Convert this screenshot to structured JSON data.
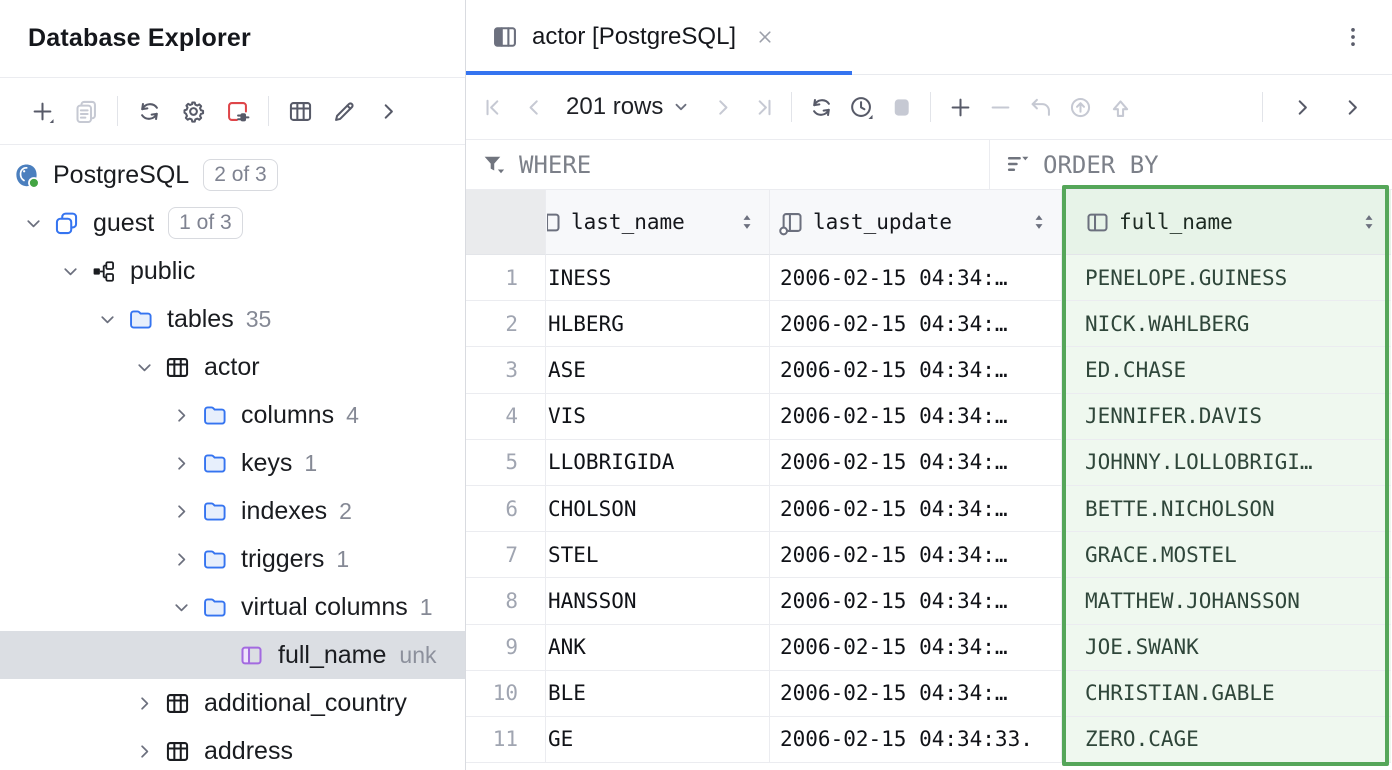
{
  "left_panel": {
    "title": "Database Explorer",
    "toolbar": [
      {
        "icon": "add-icon",
        "name": "add-data-source-button",
        "enabled": true,
        "dropdown": true
      },
      {
        "icon": "duplicate-icon",
        "name": "duplicate-button",
        "enabled": false
      },
      {
        "type": "separator"
      },
      {
        "icon": "refresh-icon",
        "name": "refresh-button",
        "enabled": true
      },
      {
        "icon": "settings-icon",
        "name": "settings-button",
        "enabled": true
      },
      {
        "icon": "disconnect-icon",
        "name": "disconnect-button",
        "enabled": true
      },
      {
        "type": "separator"
      },
      {
        "icon": "table-view-icon",
        "name": "table-view-button",
        "enabled": true
      },
      {
        "icon": "edit-icon",
        "name": "edit-source-button",
        "enabled": true
      },
      {
        "icon": "chevron-right-icon",
        "name": "more-actions-button",
        "enabled": true
      }
    ],
    "tree": [
      {
        "label": "PostgreSQL",
        "icon": "postgresql-icon",
        "level": 0,
        "badge": "2 of 3"
      },
      {
        "label": "guest",
        "icon": "database-icon",
        "level": 1,
        "expanded": true,
        "badge": "1 of 3"
      },
      {
        "label": "public",
        "icon": "schema-icon",
        "level": 2,
        "expanded": true
      },
      {
        "label": "tables",
        "icon": "folder-icon",
        "level": 3,
        "expanded": true,
        "count": "35"
      },
      {
        "label": "actor",
        "icon": "table-icon",
        "level": 4,
        "expanded": true
      },
      {
        "label": "columns",
        "icon": "folder-icon",
        "level": 5,
        "expanded": false,
        "count": "4"
      },
      {
        "label": "keys",
        "icon": "folder-icon",
        "level": 5,
        "expanded": false,
        "count": "1"
      },
      {
        "label": "indexes",
        "icon": "folder-icon",
        "level": 5,
        "expanded": false,
        "count": "2"
      },
      {
        "label": "triggers",
        "icon": "folder-icon",
        "level": 5,
        "expanded": false,
        "count": "1"
      },
      {
        "label": "virtual columns",
        "icon": "folder-icon",
        "level": 5,
        "expanded": true,
        "count": "1"
      },
      {
        "label": "full_name",
        "icon": "virtual-column-icon",
        "level": 6,
        "selected": true,
        "suffix": "unk"
      },
      {
        "label": "additional_country",
        "icon": "table-icon",
        "level": 4,
        "expanded": false
      },
      {
        "label": "address",
        "icon": "table-icon",
        "level": 4,
        "expanded": false
      }
    ]
  },
  "editor": {
    "tab": {
      "icon": "tab-table-icon",
      "title": "actor [PostgreSQL]"
    }
  },
  "grid_toolbar": {
    "left": [
      {
        "icon": "first-page-icon",
        "name": "first-page-button",
        "enabled": false
      },
      {
        "icon": "previous-page-icon",
        "name": "previous-page-button",
        "enabled": false
      },
      {
        "type": "dropdown",
        "name": "page-size-dropdown",
        "label": "201 rows"
      },
      {
        "icon": "next-page-icon",
        "name": "next-page-button",
        "enabled": false
      },
      {
        "icon": "last-page-icon",
        "name": "last-page-button",
        "enabled": false
      },
      {
        "type": "separator"
      },
      {
        "icon": "reload-icon",
        "name": "reload-data-button",
        "enabled": true
      },
      {
        "icon": "clock-icon",
        "name": "refresh-interval-button",
        "enabled": true,
        "dropdown": true
      },
      {
        "icon": "stop-icon",
        "name": "stop-button",
        "enabled": false
      },
      {
        "type": "separator"
      },
      {
        "icon": "plus-icon",
        "name": "add-row-button",
        "enabled": true
      },
      {
        "icon": "minus-icon",
        "name": "delete-row-button",
        "enabled": false
      },
      {
        "icon": "undo-icon",
        "name": "revert-changes-button",
        "enabled": false
      },
      {
        "icon": "submit-icon",
        "name": "submit-button",
        "enabled": false
      },
      {
        "icon": "upload-icon",
        "name": "commit-button",
        "enabled": false
      }
    ],
    "right": [
      {
        "type": "separator"
      },
      {
        "icon": "chevron-right-icon",
        "name": "show-toolbar-chevron-1",
        "enabled": true
      },
      {
        "icon": "chevron-right-icon",
        "name": "show-toolbar-chevron-2",
        "enabled": true
      }
    ]
  },
  "filter_bar": {
    "where_label": "WHERE",
    "order_by_label": "ORDER BY"
  },
  "table": {
    "columns": [
      {
        "label": "last_name",
        "icon": "column-icon",
        "icon_clipped": true,
        "sortable": true,
        "highlighted": false
      },
      {
        "label": "last_update",
        "icon": "column-with-default-icon",
        "icon_clipped": false,
        "sortable": true,
        "highlighted": false
      },
      {
        "label": "full_name",
        "icon": "column-icon",
        "icon_clipped": false,
        "sortable": true,
        "highlighted": true
      }
    ],
    "rows": [
      {
        "num": "1",
        "last_name": "INESS",
        "last_update": "2006-02-15 04:34:…",
        "full_name": "PENELOPE.GUINESS"
      },
      {
        "num": "2",
        "last_name": "HLBERG",
        "last_update": "2006-02-15 04:34:…",
        "full_name": "NICK.WAHLBERG"
      },
      {
        "num": "3",
        "last_name": "ASE",
        "last_update": "2006-02-15 04:34:…",
        "full_name": "ED.CHASE"
      },
      {
        "num": "4",
        "last_name": "VIS",
        "last_update": "2006-02-15 04:34:…",
        "full_name": "JENNIFER.DAVIS"
      },
      {
        "num": "5",
        "last_name": "LLOBRIGIDA",
        "last_update": "2006-02-15 04:34:…",
        "full_name": "JOHNNY.LOLLOBRIGI…"
      },
      {
        "num": "6",
        "last_name": "CHOLSON",
        "last_update": "2006-02-15 04:34:…",
        "full_name": "BETTE.NICHOLSON"
      },
      {
        "num": "7",
        "last_name": "STEL",
        "last_update": "2006-02-15 04:34:…",
        "full_name": "GRACE.MOSTEL"
      },
      {
        "num": "8",
        "last_name": "HANSSON",
        "last_update": "2006-02-15 04:34:…",
        "full_name": "MATTHEW.JOHANSSON"
      },
      {
        "num": "9",
        "last_name": "ANK",
        "last_update": "2006-02-15 04:34:…",
        "full_name": "JOE.SWANK"
      },
      {
        "num": "10",
        "last_name": "BLE",
        "last_update": "2006-02-15 04:34:…",
        "full_name": "CHRISTIAN.GABLE"
      },
      {
        "num": "11",
        "last_name": "GE",
        "last_update": "2006-02-15 04:34:33.",
        "full_name": "ZERO.CAGE"
      }
    ]
  },
  "colors": {
    "accent_blue": "#3574F0",
    "highlight_border_green": "#55A659",
    "highlight_fill_green": "#EFF8EF",
    "tree_selection_gray": "#DBDEE3",
    "disconnect_red": "#DE4549",
    "postgres_blue": "#4B7FBE",
    "status_green": "#43A443"
  }
}
